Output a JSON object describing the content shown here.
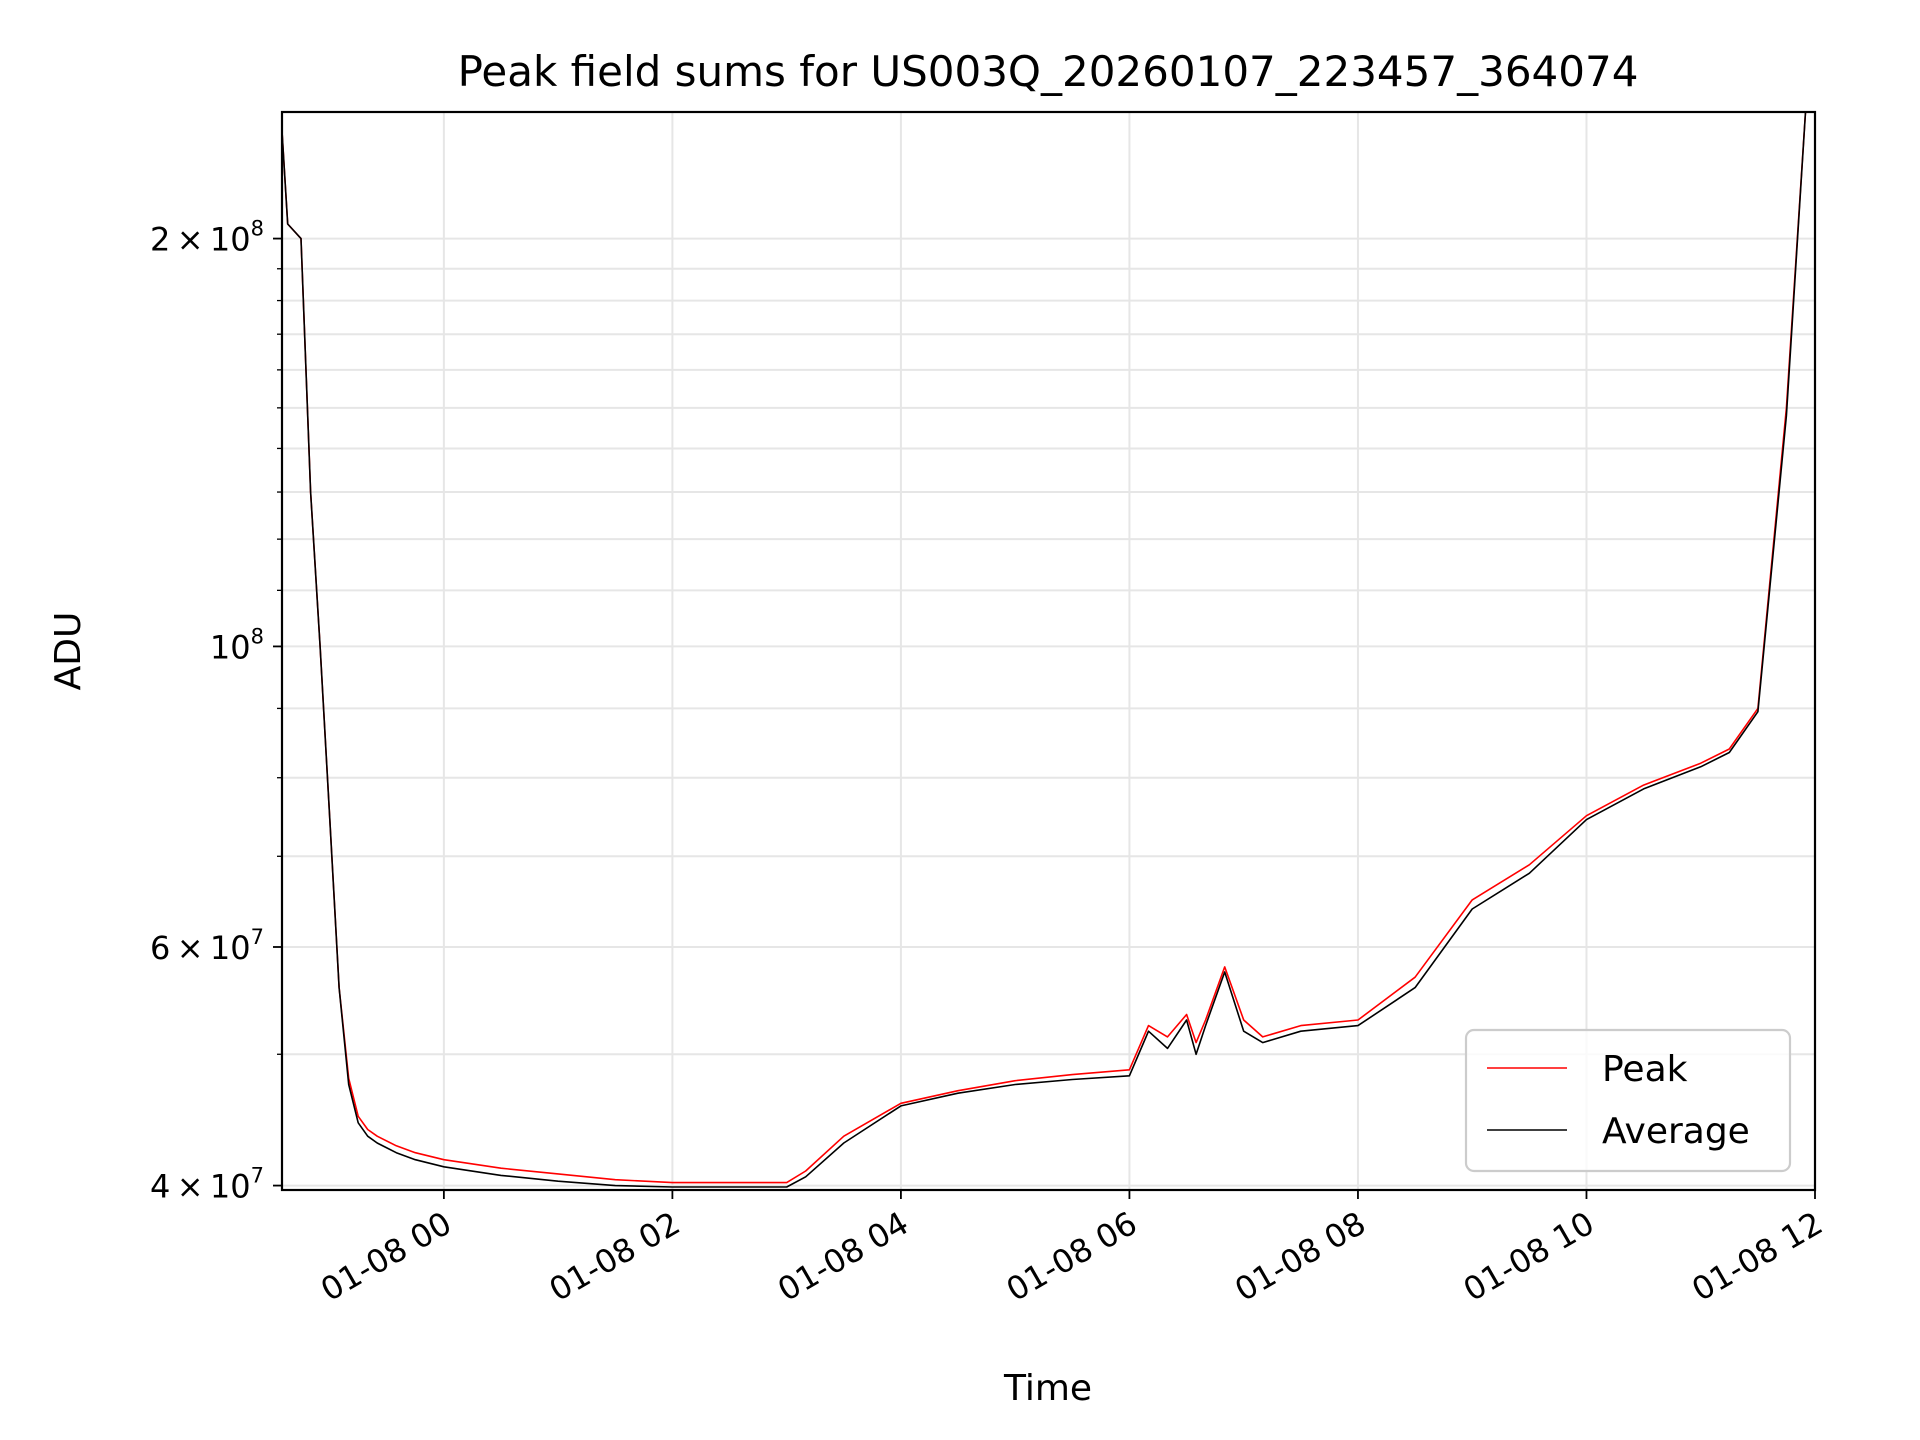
{
  "chart_data": {
    "type": "line",
    "title": "Peak field sums for US003Q_20260107_223457_364074",
    "xlabel": "Time",
    "ylabel": "ADU",
    "yscale": "log",
    "ylim": [
      39700000,
      248000000
    ],
    "xlim": [
      "2026-01-07T22:35:00",
      "2026-01-08T12:00:00"
    ],
    "x_ticks": [
      "01-08 00",
      "01-08 02",
      "01-08 04",
      "01-08 06",
      "01-08 08",
      "01-08 10",
      "01-08 12"
    ],
    "y_ticks": [
      {
        "value": 40000000,
        "mantissa": "4",
        "exp": "7"
      },
      {
        "value": 60000000,
        "mantissa": "6",
        "exp": "7"
      },
      {
        "value": 100000000,
        "mantissa": "",
        "exp": "8"
      },
      {
        "value": 200000000,
        "mantissa": "2",
        "exp": "8"
      }
    ],
    "grid": true,
    "legend_position": "lower right",
    "x": [
      "2026-01-07T22:35:00",
      "2026-01-07T22:38:00",
      "2026-01-07T22:45:00",
      "2026-01-07T22:50:00",
      "2026-01-07T22:55:00",
      "2026-01-07T23:00:00",
      "2026-01-07T23:05:00",
      "2026-01-07T23:10:00",
      "2026-01-07T23:15:00",
      "2026-01-07T23:20:00",
      "2026-01-07T23:25:00",
      "2026-01-07T23:35:00",
      "2026-01-07T23:45:00",
      "2026-01-08T00:00:00",
      "2026-01-08T00:30:00",
      "2026-01-08T01:00:00",
      "2026-01-08T01:30:00",
      "2026-01-08T02:00:00",
      "2026-01-08T02:30:00",
      "2026-01-08T03:00:00",
      "2026-01-08T03:10:00",
      "2026-01-08T03:30:00",
      "2026-01-08T04:00:00",
      "2026-01-08T04:30:00",
      "2026-01-08T05:00:00",
      "2026-01-08T05:30:00",
      "2026-01-08T06:00:00",
      "2026-01-08T06:10:00",
      "2026-01-08T06:20:00",
      "2026-01-08T06:30:00",
      "2026-01-08T06:35:00",
      "2026-01-08T06:40:00",
      "2026-01-08T06:50:00",
      "2026-01-08T07:00:00",
      "2026-01-08T07:10:00",
      "2026-01-08T07:30:00",
      "2026-01-08T08:00:00",
      "2026-01-08T08:30:00",
      "2026-01-08T09:00:00",
      "2026-01-08T09:30:00",
      "2026-01-08T10:00:00",
      "2026-01-08T10:30:00",
      "2026-01-08T11:00:00",
      "2026-01-08T11:15:00",
      "2026-01-08T11:30:00",
      "2026-01-08T11:45:00",
      "2026-01-08T11:55:00"
    ],
    "series": [
      {
        "name": "Peak",
        "color": "#ff0000",
        "values": [
          240000000,
          205000000,
          200000000,
          130000000,
          100000000,
          75000000,
          56000000,
          48000000,
          45000000,
          44000000,
          43500000,
          42800000,
          42300000,
          41800000,
          41200000,
          40800000,
          40400000,
          40200000,
          40200000,
          40200000,
          41000000,
          43500000,
          46000000,
          47000000,
          47800000,
          48300000,
          48700000,
          52500000,
          51500000,
          53500000,
          51000000,
          53000000,
          58000000,
          53000000,
          51500000,
          52500000,
          53000000,
          57000000,
          65000000,
          69000000,
          75000000,
          79000000,
          82000000,
          84000000,
          90000000,
          150000000,
          248000000
        ]
      },
      {
        "name": "Average",
        "color": "#000000",
        "values": [
          240000000,
          205000000,
          200000000,
          130000000,
          100000000,
          75000000,
          56000000,
          47500000,
          44500000,
          43500000,
          43000000,
          42300000,
          41800000,
          41300000,
          40700000,
          40300000,
          40000000,
          39900000,
          39900000,
          39900000,
          40600000,
          43000000,
          45800000,
          46800000,
          47500000,
          47900000,
          48200000,
          52000000,
          50500000,
          53000000,
          50000000,
          52500000,
          57500000,
          52000000,
          51000000,
          52000000,
          52500000,
          56000000,
          64000000,
          68000000,
          74500000,
          78500000,
          81500000,
          83500000,
          89500000,
          148000000,
          248000000
        ]
      }
    ]
  }
}
